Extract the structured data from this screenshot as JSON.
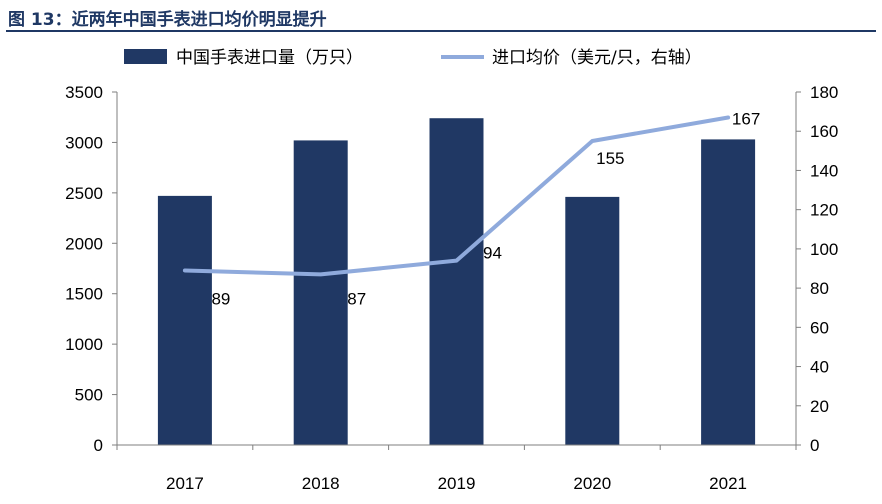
{
  "header": {
    "title": "图 13：近两年中国手表进口均价明显提升"
  },
  "chart_data": {
    "type": "bar",
    "categories": [
      "2017",
      "2018",
      "2019",
      "2020",
      "2021"
    ],
    "series": [
      {
        "name": "中国手表进口量（万只）",
        "type": "bar",
        "axis": "left",
        "color": "#203864",
        "values": [
          2470,
          3020,
          3240,
          2460,
          3030
        ]
      },
      {
        "name": "进口均价（美元/只，右轴）",
        "type": "line",
        "axis": "right",
        "color": "#8faadc",
        "values": [
          89,
          87,
          94,
          155,
          167
        ],
        "labels": [
          "89",
          "87",
          "94",
          "155",
          "167"
        ]
      }
    ],
    "y_left": {
      "min": 0,
      "max": 3500,
      "ticks": [
        "0",
        "500",
        "1000",
        "1500",
        "2000",
        "2500",
        "3000",
        "3500"
      ]
    },
    "y_right": {
      "min": 0,
      "max": 180,
      "ticks": [
        "0",
        "20",
        "40",
        "60",
        "80",
        "100",
        "120",
        "140",
        "160",
        "180"
      ]
    },
    "legend_position": "top",
    "grid": false
  }
}
